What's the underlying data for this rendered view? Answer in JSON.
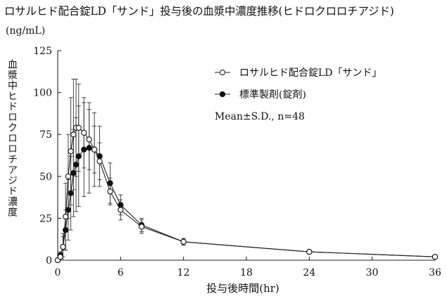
{
  "chart_data": {
    "type": "line",
    "title": "ロサルヒド配合錠LD「サンド」投与後の血漿中濃度推移(ヒドロクロロチアジド)",
    "unit": "(ng/mL)",
    "ylabel": "血漿中ヒドロクロロチアジド濃度",
    "xlabel": "投与後時間(hr)",
    "xlim": [
      0,
      36
    ],
    "ylim": [
      0,
      125
    ],
    "xticks": [
      0,
      6,
      12,
      18,
      24,
      30,
      36
    ],
    "yticks": [
      0,
      25,
      50,
      75,
      100,
      125
    ],
    "grid": false,
    "legend_position": "top-right",
    "annotation": "Mean±S.D., n=48",
    "x": [
      0,
      0.25,
      0.5,
      0.75,
      1,
      1.25,
      1.5,
      1.75,
      2,
      2.5,
      3,
      3.5,
      4,
      5,
      6,
      8,
      12,
      24,
      36
    ],
    "series": [
      {
        "name": "ロサルヒド配合錠LD「サンド」",
        "marker": "open-circle",
        "values": [
          0,
          2,
          8,
          26,
          50,
          65,
          75,
          79,
          79,
          76,
          72,
          66,
          59,
          41,
          30,
          20,
          11,
          5,
          2
        ],
        "sd": [
          0,
          2,
          8,
          20,
          25,
          32,
          33,
          29,
          26,
          21,
          18,
          14,
          11,
          8,
          6,
          4,
          2,
          1,
          1
        ]
      },
      {
        "name": "標準製剤(錠剤)",
        "marker": "filled-circle",
        "values": [
          0,
          3,
          8,
          18,
          30,
          40,
          52,
          57,
          62,
          66,
          67,
          66,
          62,
          46,
          33,
          21,
          11,
          5,
          2
        ],
        "sd": [
          0,
          2,
          6,
          12,
          18,
          22,
          26,
          28,
          30,
          28,
          27,
          22,
          18,
          12,
          6,
          4,
          2,
          1,
          1
        ]
      }
    ]
  }
}
